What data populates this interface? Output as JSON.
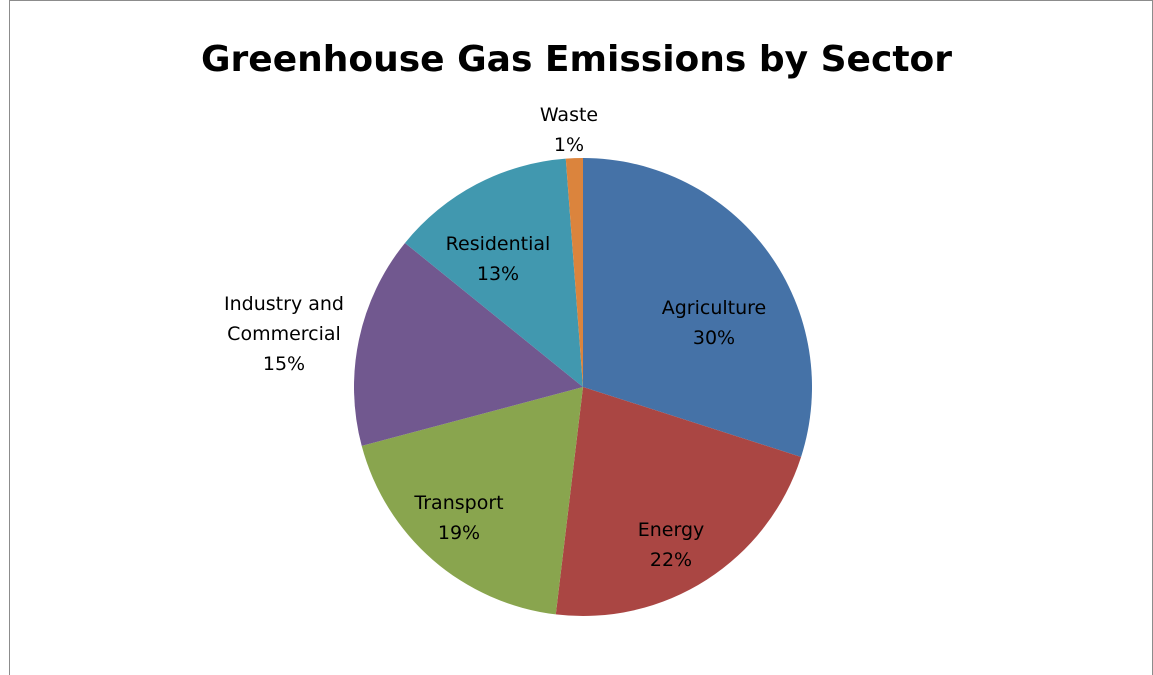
{
  "chart_data": {
    "type": "pie",
    "title": "Greenhouse Gas Emissions by Sector",
    "slices": [
      {
        "name": "Agriculture",
        "value": 30,
        "label": "30%",
        "color": "#4572A7"
      },
      {
        "name": "Energy",
        "value": 22,
        "label": "22%",
        "color": "#AA4643"
      },
      {
        "name": "Transport",
        "value": 19,
        "label": "19%",
        "color": "#89A54E"
      },
      {
        "name": "Industry and Commercial",
        "value": 15,
        "label": "15%",
        "color": "#71588F"
      },
      {
        "name": "Residential",
        "value": 13,
        "label": "13%",
        "color": "#4198AF"
      },
      {
        "name": "Waste",
        "value": 1.2,
        "label": "1%",
        "color": "#DB843D"
      }
    ],
    "start_angle": "12 o'clock",
    "direction": "clockwise",
    "legend": "none"
  }
}
